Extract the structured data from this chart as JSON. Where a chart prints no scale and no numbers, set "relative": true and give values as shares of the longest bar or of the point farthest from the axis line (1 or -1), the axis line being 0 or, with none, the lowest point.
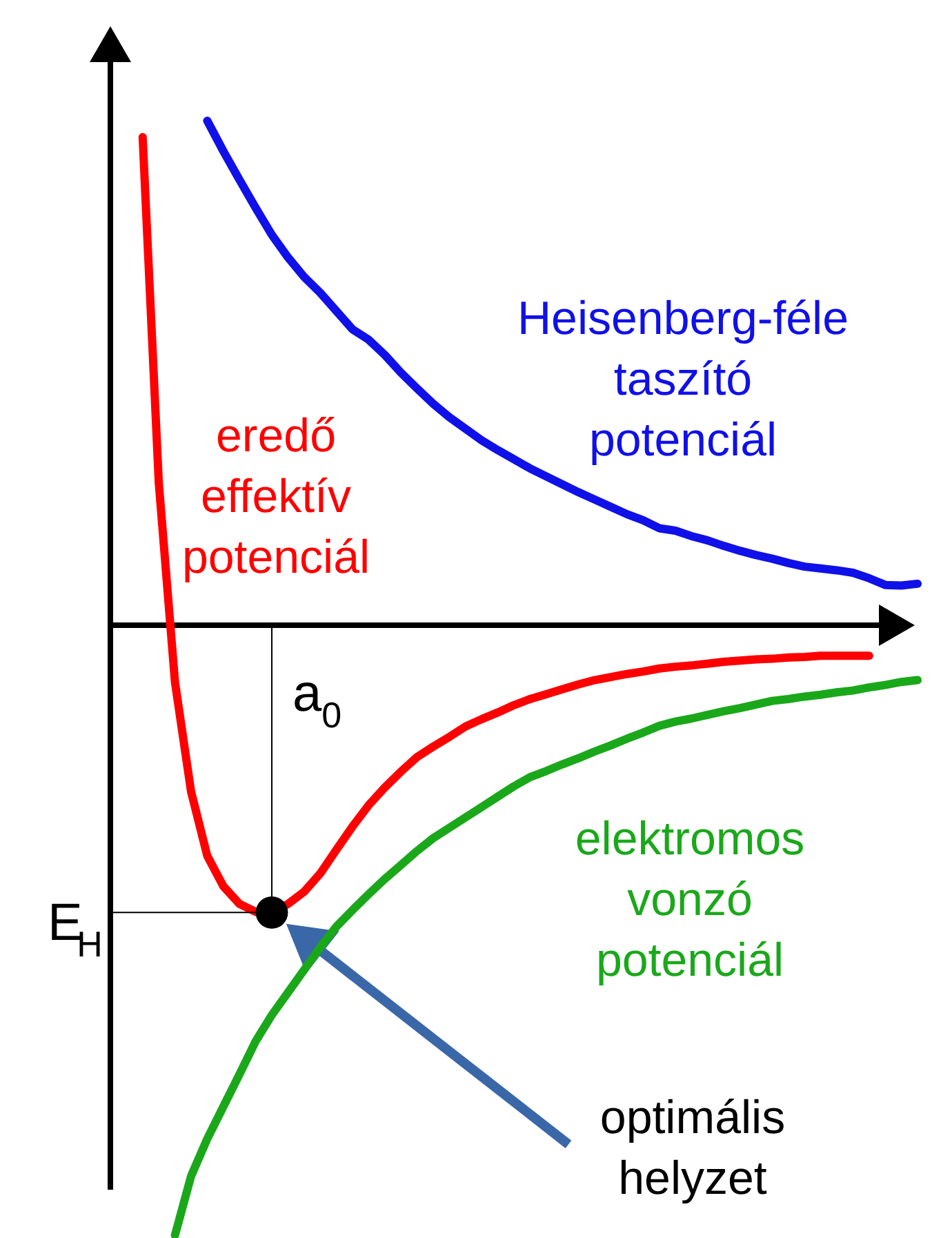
{
  "chart_data": {
    "type": "line",
    "relative": true,
    "line_style": "solid",
    "marker": "none",
    "categories": [
      null,
      null,
      null,
      null,
      null,
      null,
      null,
      null,
      null,
      null,
      null,
      null,
      null,
      null,
      null,
      null,
      null,
      null,
      null,
      null,
      null,
      null,
      null,
      null,
      null,
      null,
      null,
      null,
      null,
      null,
      null,
      null,
      null,
      null,
      null,
      null,
      null,
      null,
      null,
      null,
      null,
      null,
      null,
      null,
      null,
      null,
      null,
      null,
      null,
      null,
      null
    ],
    "series": [
      {
        "name": "Heisenberg-féle\ntaszító\npotenciál",
        "color": "#1010e8",
        "values": [
          null,
          null,
          null,
          null,
          null,
          null,
          0.827,
          0.777,
          0.73,
          0.684,
          0.64,
          0.603,
          0.571,
          0.545,
          0.515,
          0.485,
          0.468,
          0.443,
          0.414,
          0.388,
          0.363,
          0.341,
          0.322,
          0.303,
          0.287,
          0.272,
          0.257,
          0.244,
          0.231,
          0.218,
          0.206,
          0.194,
          0.182,
          0.172,
          0.159,
          0.155,
          0.146,
          0.139,
          0.13,
          0.122,
          0.115,
          0.109,
          0.102,
          0.096,
          0.093,
          0.09,
          0.086,
          0.077,
          0.066,
          0.065,
          0.068
        ]
      },
      {
        "name": "eredő\neffektív\npotenciál",
        "color": "#ff0000",
        "values": [
          null,
          null,
          0.8,
          0.233,
          -0.093,
          -0.273,
          -0.378,
          -0.428,
          -0.457,
          -0.47,
          -0.471,
          -0.457,
          -0.437,
          -0.407,
          -0.368,
          -0.33,
          -0.295,
          -0.266,
          -0.24,
          -0.216,
          -0.199,
          -0.183,
          -0.166,
          -0.154,
          -0.143,
          -0.131,
          -0.121,
          -0.113,
          -0.105,
          -0.097,
          -0.09,
          -0.085,
          -0.08,
          -0.076,
          -0.071,
          -0.068,
          -0.066,
          -0.063,
          -0.06,
          -0.058,
          -0.056,
          -0.055,
          -0.053,
          -0.052,
          -0.05,
          -0.05,
          -0.05,
          -0.05,
          null,
          null,
          null
        ]
      },
      {
        "name": "elektromos\nvonzó\npotenciál",
        "color": "#1aa81a",
        "values": [
          null,
          null,
          null,
          null,
          -1,
          -0.903,
          -0.842,
          -0.789,
          -0.736,
          -0.682,
          -0.639,
          -0.602,
          -0.565,
          -0.528,
          -0.494,
          -0.467,
          -0.441,
          -0.416,
          -0.393,
          -0.37,
          -0.349,
          -0.332,
          -0.315,
          -0.298,
          -0.281,
          -0.264,
          -0.249,
          -0.239,
          -0.228,
          -0.218,
          -0.207,
          -0.197,
          -0.186,
          -0.176,
          -0.165,
          -0.158,
          -0.153,
          -0.147,
          -0.141,
          -0.136,
          -0.13,
          -0.124,
          -0.121,
          -0.117,
          -0.114,
          -0.11,
          -0.107,
          -0.102,
          -0.098,
          -0.093,
          -0.09
        ]
      }
    ],
    "annotations": [
      "a$_{0}$",
      "E$_{H}$",
      "optimális\nhelyzet"
    ]
  }
}
